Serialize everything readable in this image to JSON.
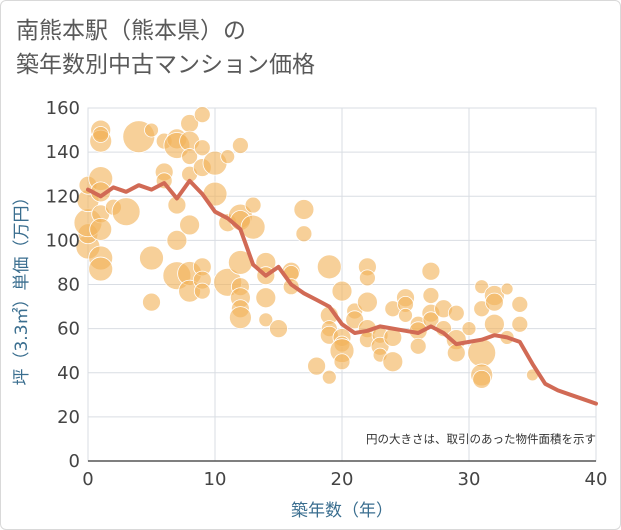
{
  "title": {
    "line1": "南熊本駅（熊本県）の",
    "line2": "築年数別中古マンション価格"
  },
  "colors": {
    "bubble": "#f2b35b",
    "line": "#d16a55",
    "grid": "#d9dde3",
    "axis_title": "#3a6e8f"
  },
  "chart_data": {
    "type": "scatter",
    "xlabel": "築年数（年）",
    "ylabel": "坪（3.3㎡）単価（万円）",
    "xlim": [
      0,
      40
    ],
    "ylim": [
      0,
      160
    ],
    "xticks": [
      "0",
      "10",
      "20",
      "30",
      "40"
    ],
    "yticks": [
      "0",
      "20",
      "40",
      "60",
      "80",
      "100",
      "120",
      "140",
      "160"
    ],
    "note": "円の大きさは、取引のあった物件面積を示す",
    "grid": true,
    "points": [
      [
        0,
        97,
        12
      ],
      [
        0,
        103,
        10
      ],
      [
        0,
        108,
        14
      ],
      [
        0,
        118,
        11
      ],
      [
        0,
        125,
        9
      ],
      [
        1,
        150,
        10
      ],
      [
        1,
        145,
        11
      ],
      [
        1,
        148,
        8
      ],
      [
        1,
        128,
        12
      ],
      [
        1,
        122,
        10
      ],
      [
        1,
        112,
        9
      ],
      [
        1,
        105,
        11
      ],
      [
        1,
        92,
        12
      ],
      [
        1,
        87,
        12
      ],
      [
        2,
        115,
        8
      ],
      [
        3,
        113,
        14
      ],
      [
        4,
        147,
        16
      ],
      [
        5,
        150,
        7
      ],
      [
        5,
        92,
        12
      ],
      [
        5,
        72,
        9
      ],
      [
        6,
        145,
        8
      ],
      [
        6,
        131,
        9
      ],
      [
        6,
        127,
        8
      ],
      [
        7,
        146,
        10
      ],
      [
        7,
        143,
        13
      ],
      [
        7,
        116,
        9
      ],
      [
        7,
        100,
        10
      ],
      [
        7,
        84,
        14
      ],
      [
        8,
        153,
        9
      ],
      [
        8,
        145,
        10
      ],
      [
        8,
        138,
        8
      ],
      [
        8,
        130,
        8
      ],
      [
        8,
        107,
        10
      ],
      [
        8,
        85,
        12
      ],
      [
        8,
        77,
        11
      ],
      [
        9,
        157,
        8
      ],
      [
        9,
        142,
        8
      ],
      [
        9,
        133,
        9
      ],
      [
        9,
        88,
        9
      ],
      [
        9,
        82,
        9
      ],
      [
        9,
        77,
        8
      ],
      [
        10,
        135,
        12
      ],
      [
        10,
        121,
        12
      ],
      [
        11,
        138,
        7
      ],
      [
        11,
        108,
        9
      ],
      [
        11,
        81,
        14
      ],
      [
        12,
        143,
        8
      ],
      [
        12,
        111,
        12
      ],
      [
        12,
        109,
        10
      ],
      [
        12,
        90,
        12
      ],
      [
        12,
        79,
        9
      ],
      [
        12,
        74,
        10
      ],
      [
        12,
        69,
        9
      ],
      [
        12,
        65,
        11
      ],
      [
        13,
        116,
        8
      ],
      [
        13,
        106,
        12
      ],
      [
        14,
        90,
        10
      ],
      [
        14,
        84,
        9
      ],
      [
        14,
        74,
        10
      ],
      [
        14,
        64,
        7
      ],
      [
        15,
        60,
        9
      ],
      [
        16,
        86,
        9
      ],
      [
        16,
        85,
        8
      ],
      [
        16,
        79,
        8
      ],
      [
        17,
        114,
        10
      ],
      [
        17,
        103,
        8
      ],
      [
        18,
        43,
        9
      ],
      [
        19,
        88,
        12
      ],
      [
        19,
        66,
        9
      ],
      [
        19,
        60,
        8
      ],
      [
        19,
        57,
        9
      ],
      [
        19,
        38,
        7
      ],
      [
        20,
        77,
        10
      ],
      [
        20,
        56,
        9
      ],
      [
        20,
        53,
        8
      ],
      [
        20,
        50,
        12
      ],
      [
        20,
        45,
        8
      ],
      [
        21,
        68,
        8
      ],
      [
        21,
        64,
        9
      ],
      [
        22,
        88,
        9
      ],
      [
        22,
        83,
        8
      ],
      [
        22,
        72,
        10
      ],
      [
        22,
        60,
        9
      ],
      [
        22,
        55,
        8
      ],
      [
        23,
        57,
        8
      ],
      [
        23,
        52,
        9
      ],
      [
        23,
        48,
        7
      ],
      [
        24,
        69,
        8
      ],
      [
        24,
        56,
        9
      ],
      [
        24,
        45,
        10
      ],
      [
        25,
        74,
        9
      ],
      [
        25,
        71,
        8
      ],
      [
        25,
        66,
        7
      ],
      [
        26,
        62,
        8
      ],
      [
        26,
        59,
        9
      ],
      [
        26,
        52,
        8
      ],
      [
        27,
        86,
        9
      ],
      [
        27,
        75,
        8
      ],
      [
        27,
        67,
        9
      ],
      [
        27,
        64,
        8
      ],
      [
        28,
        69,
        9
      ],
      [
        28,
        60,
        8
      ],
      [
        29,
        55,
        10
      ],
      [
        29,
        49,
        9
      ],
      [
        29,
        67,
        8
      ],
      [
        30,
        60,
        7
      ],
      [
        31,
        79,
        7
      ],
      [
        31,
        69,
        8
      ],
      [
        31,
        49,
        14
      ],
      [
        31,
        39,
        11
      ],
      [
        31,
        37,
        9
      ],
      [
        32,
        75,
        10
      ],
      [
        32,
        72,
        9
      ],
      [
        32,
        62,
        10
      ],
      [
        33,
        78,
        6
      ],
      [
        33,
        56,
        7
      ],
      [
        34,
        71,
        8
      ],
      [
        34,
        62,
        8
      ],
      [
        35,
        39,
        6
      ]
    ],
    "series": [
      {
        "x": [
          0,
          1,
          2,
          3,
          4,
          5,
          6,
          7,
          8,
          9,
          10,
          11,
          12,
          13,
          14,
          15,
          16,
          17,
          18,
          19,
          20,
          21,
          22,
          23,
          24,
          25,
          26,
          27,
          28,
          29,
          30,
          31,
          32,
          33,
          34,
          35,
          36,
          37,
          38,
          39,
          40
        ],
        "values": [
          123,
          120,
          124,
          122,
          125,
          123,
          126,
          119,
          127,
          121,
          113,
          110,
          105,
          89,
          84,
          88,
          80,
          76,
          73,
          70,
          62,
          58,
          59,
          61,
          60,
          59,
          58,
          61,
          58,
          53,
          54,
          55,
          57,
          56,
          54,
          44,
          35,
          32,
          30,
          28,
          26
        ]
      }
    ]
  }
}
